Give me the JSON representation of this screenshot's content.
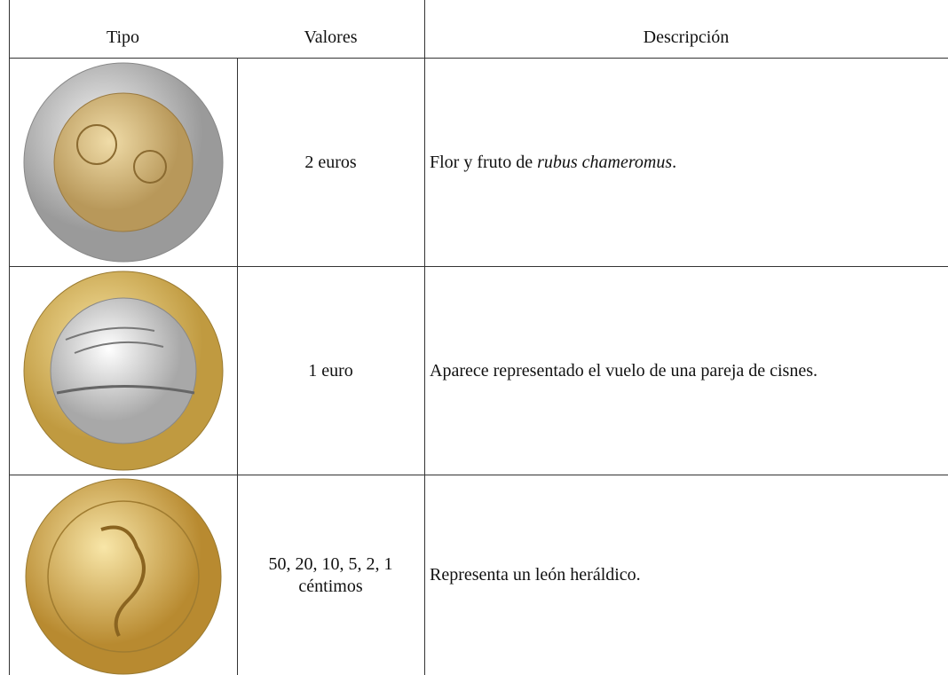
{
  "table": {
    "header": [
      "Tipo",
      "Valores",
      "Descripción"
    ],
    "rows": [
      {
        "value": "2 euros",
        "description": [
          "Flor y fruto de ",
          "rubus chameromus",
          "."
        ]
      },
      {
        "value": "1 euro",
        "description": [
          "Aparece representado el vuelo de una pareja de cisnes."
        ]
      },
      {
        "value": "50, 20, 10, 5, 2, 1 céntimos",
        "description": [
          "Representa un león heráldico."
        ]
      }
    ]
  }
}
